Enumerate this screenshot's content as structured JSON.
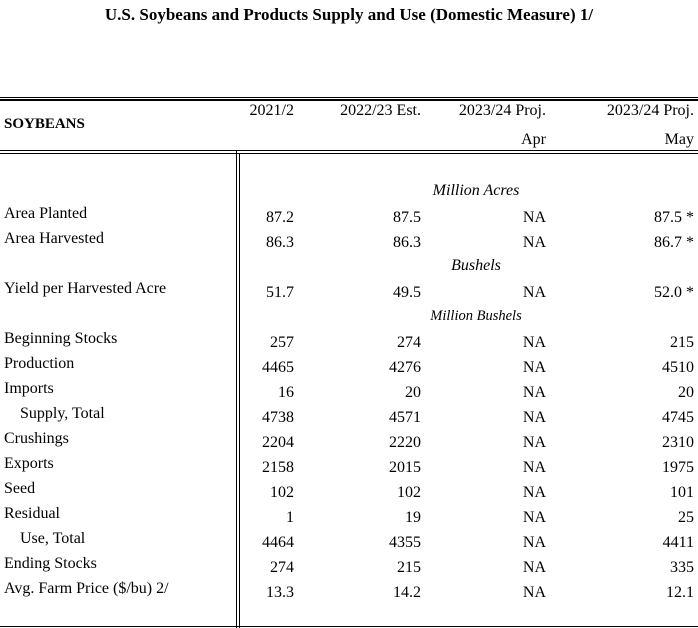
{
  "title": "U.S. Soybeans and Products Supply and Use (Domestic Measure)  1/",
  "section": "SOYBEANS",
  "columns": [
    {
      "line1": "2021/2",
      "line2": ""
    },
    {
      "line1": "2022/23 Est.",
      "line2": ""
    },
    {
      "line1": "2023/24 Proj.",
      "line2": "Apr"
    },
    {
      "line1": "2023/24 Proj.",
      "line2": "May"
    }
  ],
  "units": {
    "acres": "Million Acres",
    "bushels": "Bushels",
    "million_bushels": "Million Bushels"
  },
  "rows": [
    {
      "label": "Area Planted",
      "values": [
        "87.2",
        "87.5",
        "NA",
        "87.5 *"
      ]
    },
    {
      "label": "Area Harvested",
      "values": [
        "86.3",
        "86.3",
        "NA",
        "86.7 *"
      ]
    },
    {
      "label": "Yield per Harvested Acre",
      "values": [
        "51.7",
        "49.5",
        "NA",
        "52.0 *"
      ]
    },
    {
      "label": "Beginning Stocks",
      "values": [
        "257",
        "274",
        "NA",
        "215"
      ]
    },
    {
      "label": "Production",
      "values": [
        "4465",
        "4276",
        "NA",
        "4510"
      ]
    },
    {
      "label": "Imports",
      "values": [
        "16",
        "20",
        "NA",
        "20"
      ]
    },
    {
      "label": "Supply, Total",
      "values": [
        "4738",
        "4571",
        "NA",
        "4745"
      ]
    },
    {
      "label": "Crushings",
      "values": [
        "2204",
        "2220",
        "NA",
        "2310"
      ]
    },
    {
      "label": "Exports",
      "values": [
        "2158",
        "2015",
        "NA",
        "1975"
      ]
    },
    {
      "label": "Seed",
      "values": [
        "102",
        "102",
        "NA",
        "101"
      ]
    },
    {
      "label": "Residual",
      "values": [
        "1",
        "19",
        "NA",
        "25"
      ]
    },
    {
      "label": "Use, Total",
      "values": [
        "4464",
        "4355",
        "NA",
        "4411"
      ]
    },
    {
      "label": "Ending Stocks",
      "values": [
        "274",
        "215",
        "NA",
        "335"
      ]
    },
    {
      "label": "Avg. Farm Price ($/bu)  2/",
      "values": [
        "13.3",
        "14.2",
        "NA",
        "12.1"
      ]
    }
  ]
}
